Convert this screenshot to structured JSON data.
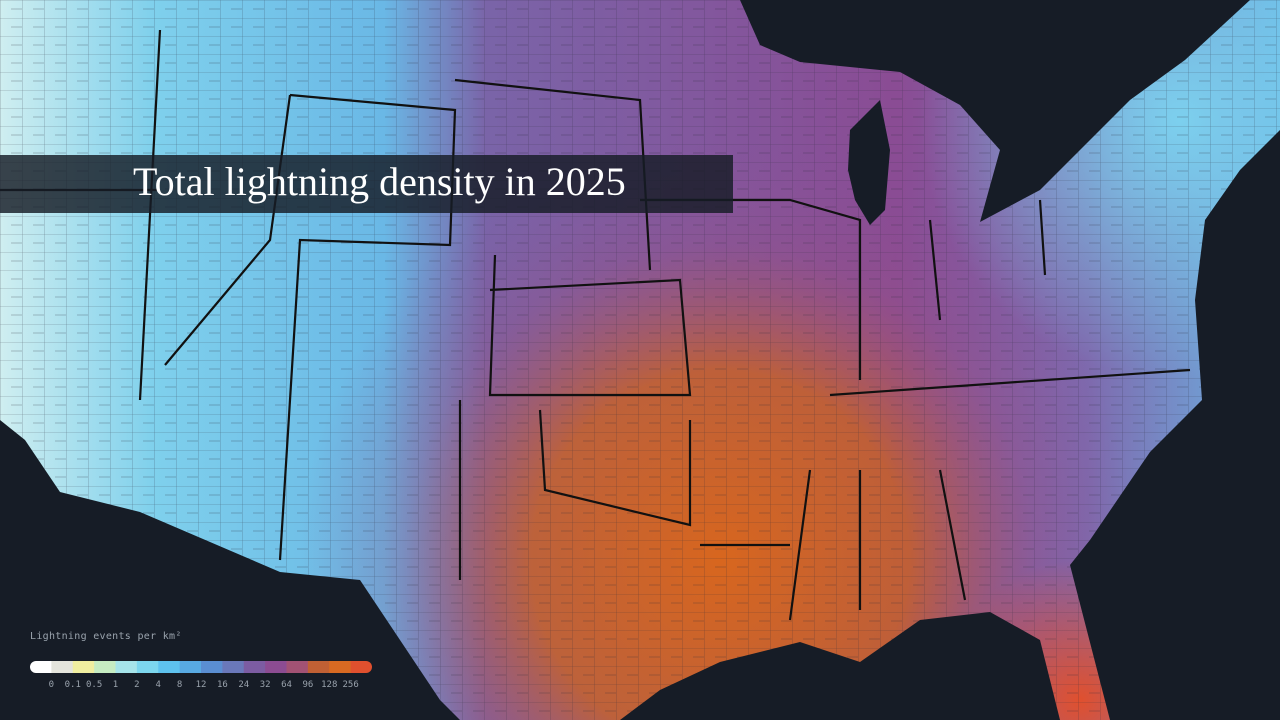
{
  "title": "Total lightning density in 2025",
  "legend": {
    "title": "Lightning events per km²",
    "labels": [
      0,
      0.1,
      0.5,
      1,
      2,
      4,
      8,
      12,
      16,
      24,
      32,
      64,
      96,
      128,
      256
    ],
    "colors": [
      "#ffffff",
      "#e4e4dc",
      "#f0eea0",
      "#c6ecc2",
      "#a6e4ea",
      "#7cd6ee",
      "#5ec2ee",
      "#58aae2",
      "#5a8ed2",
      "#6a78ba",
      "#7c5ca2",
      "#8c4c92",
      "#a25274",
      "#c06034",
      "#d86a22",
      "#e0502e"
    ]
  }
}
